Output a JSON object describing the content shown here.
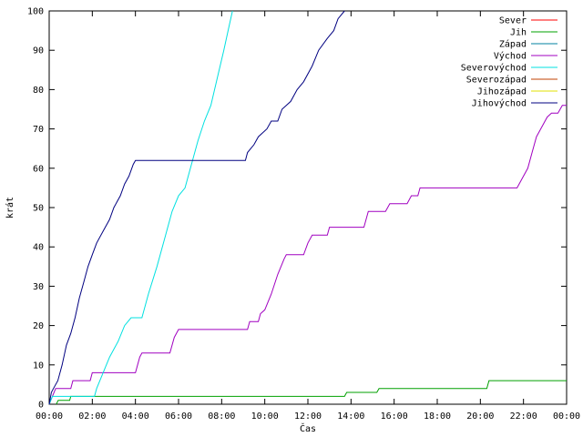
{
  "chart_data": {
    "type": "line",
    "title": "",
    "xlabel": "Čas",
    "ylabel": "krát",
    "ylim": [
      0,
      100
    ],
    "xlim": [
      0,
      24
    ],
    "x_unit": "hours",
    "grid": false,
    "legend_position": "top-right",
    "y_ticks": [
      "0",
      "10",
      "20",
      "30",
      "40",
      "50",
      "60",
      "70",
      "80",
      "90",
      "100"
    ],
    "x_ticks": [
      "00:00",
      "02:00",
      "04:00",
      "06:00",
      "08:00",
      "10:00",
      "12:00",
      "14:00",
      "16:00",
      "18:00",
      "20:00",
      "22:00",
      "00:00"
    ],
    "series": [
      {
        "name": "Sever",
        "color": "#ff0000",
        "points": []
      },
      {
        "name": "Jih",
        "color": "#00a000",
        "points": [
          [
            0.33,
            0
          ],
          [
            0.42,
            1
          ],
          [
            0.95,
            1
          ],
          [
            1.0,
            2
          ],
          [
            13.7,
            2
          ],
          [
            13.8,
            3
          ],
          [
            15.2,
            3
          ],
          [
            15.3,
            4
          ],
          [
            20.3,
            4
          ],
          [
            20.4,
            6
          ],
          [
            24.0,
            6
          ]
        ]
      },
      {
        "name": "Západ",
        "color": "#0080a0",
        "points": []
      },
      {
        "name": "Východ",
        "color": "#a000c0",
        "points": [
          [
            0.0,
            0
          ],
          [
            0.15,
            2
          ],
          [
            0.3,
            4
          ],
          [
            1.0,
            4
          ],
          [
            1.1,
            6
          ],
          [
            1.9,
            6
          ],
          [
            2.0,
            8
          ],
          [
            4.0,
            8
          ],
          [
            4.2,
            12
          ],
          [
            4.3,
            13
          ],
          [
            5.6,
            13
          ],
          [
            5.8,
            17
          ],
          [
            6.0,
            19
          ],
          [
            9.2,
            19
          ],
          [
            9.3,
            21
          ],
          [
            9.7,
            21
          ],
          [
            9.8,
            23
          ],
          [
            10.0,
            24
          ],
          [
            10.3,
            28
          ],
          [
            10.6,
            33
          ],
          [
            10.9,
            37
          ],
          [
            11.0,
            38
          ],
          [
            11.8,
            38
          ],
          [
            12.0,
            41
          ],
          [
            12.2,
            43
          ],
          [
            12.9,
            43
          ],
          [
            13.0,
            45
          ],
          [
            14.6,
            45
          ],
          [
            14.8,
            49
          ],
          [
            15.6,
            49
          ],
          [
            15.8,
            51
          ],
          [
            16.6,
            51
          ],
          [
            16.8,
            53
          ],
          [
            17.1,
            53
          ],
          [
            17.2,
            55
          ],
          [
            21.7,
            55
          ],
          [
            21.9,
            57
          ],
          [
            22.2,
            60
          ],
          [
            22.4,
            64
          ],
          [
            22.6,
            68
          ],
          [
            22.8,
            70
          ],
          [
            23.1,
            73
          ],
          [
            23.3,
            74
          ],
          [
            23.6,
            74
          ],
          [
            23.8,
            76
          ],
          [
            24.0,
            76
          ]
        ]
      },
      {
        "name": "Severovýchod",
        "color": "#00e0e0",
        "points": [
          [
            0.0,
            0
          ],
          [
            0.15,
            2
          ],
          [
            2.1,
            2
          ],
          [
            2.2,
            4
          ],
          [
            2.5,
            8
          ],
          [
            2.8,
            12
          ],
          [
            3.2,
            16
          ],
          [
            3.5,
            20
          ],
          [
            3.8,
            22
          ],
          [
            4.3,
            22
          ],
          [
            4.6,
            28
          ],
          [
            5.0,
            35
          ],
          [
            5.4,
            43
          ],
          [
            5.7,
            49
          ],
          [
            6.0,
            53
          ],
          [
            6.3,
            55
          ],
          [
            6.6,
            61
          ],
          [
            6.9,
            67
          ],
          [
            7.2,
            72
          ],
          [
            7.5,
            76
          ],
          [
            7.8,
            83
          ],
          [
            8.1,
            90
          ],
          [
            8.3,
            95
          ],
          [
            8.5,
            100
          ]
        ]
      },
      {
        "name": "Severozápad",
        "color": "#c04000",
        "points": []
      },
      {
        "name": "Jihozápad",
        "color": "#e0e000",
        "points": []
      },
      {
        "name": "Jihovýchod",
        "color": "#000080",
        "points": [
          [
            0.0,
            0
          ],
          [
            0.1,
            3
          ],
          [
            0.2,
            4
          ],
          [
            0.4,
            6
          ],
          [
            0.6,
            10
          ],
          [
            0.8,
            15
          ],
          [
            1.0,
            18
          ],
          [
            1.2,
            22
          ],
          [
            1.4,
            27
          ],
          [
            1.6,
            31
          ],
          [
            1.8,
            35
          ],
          [
            2.0,
            38
          ],
          [
            2.2,
            41
          ],
          [
            2.5,
            44
          ],
          [
            2.8,
            47
          ],
          [
            3.0,
            50
          ],
          [
            3.3,
            53
          ],
          [
            3.5,
            56
          ],
          [
            3.7,
            58
          ],
          [
            3.9,
            61
          ],
          [
            4.0,
            62
          ],
          [
            9.1,
            62
          ],
          [
            9.2,
            64
          ],
          [
            9.5,
            66
          ],
          [
            9.7,
            68
          ],
          [
            10.1,
            70
          ],
          [
            10.3,
            72
          ],
          [
            10.6,
            72
          ],
          [
            10.8,
            75
          ],
          [
            11.2,
            77
          ],
          [
            11.5,
            80
          ],
          [
            11.8,
            82
          ],
          [
            12.2,
            86
          ],
          [
            12.5,
            90
          ],
          [
            12.9,
            93
          ],
          [
            13.2,
            95
          ],
          [
            13.4,
            98
          ],
          [
            13.7,
            100
          ]
        ]
      }
    ]
  }
}
